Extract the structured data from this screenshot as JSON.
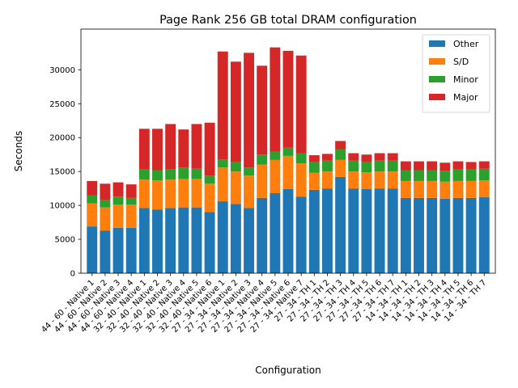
{
  "chart_data": {
    "type": "bar",
    "stacked": true,
    "title": "Page Rank 256 GB total DRAM configuration",
    "xlabel": "Configuration",
    "ylabel": "Seconds",
    "ylim": [
      0,
      36000
    ],
    "yticks": [
      0,
      5000,
      10000,
      15000,
      20000,
      25000,
      30000
    ],
    "grid": false,
    "legend_position": "top-right",
    "categories": [
      "44 - 60 - Native 1",
      "44 - 60 - Native 2",
      "44 - 60 - Native 3",
      "44 - 60 - Native 4",
      "32 - 40 - Native 1",
      "32 - 40 - Native 2",
      "32 - 40 - Native 3",
      "32 - 40 - Native 4",
      "32 - 40 - Native 5",
      "32 - 40 - Native 6",
      "27 - 34 - Native 1",
      "27 - 34 - Native 2",
      "27 - 34 - Native 3",
      "27 - 34 - Native 4",
      "27 - 34 - Native 5",
      "27 - 34 - Native 6",
      "27 - 34 - Native 7",
      "27 - 34 - TH 1",
      "27 - 34 - TH 2",
      "27 - 34 - TH 3",
      "27 - 34 - TH 4",
      "27 - 34 - TH 5",
      "27 - 34 - TH 6",
      "27 - 34 - TH 7",
      "14 - 34 - TH 1",
      "14 - 34 - TH 2",
      "14 - 34 - TH 3",
      "14 - 34 - TH 4",
      "14 - 34 - TH 5",
      "14 - 34 - TH 6",
      "14 - 34 - TH 7"
    ],
    "series": [
      {
        "name": "Other",
        "color": "#1f77b4",
        "values": [
          6900,
          6300,
          6700,
          6700,
          9600,
          9400,
          9600,
          9700,
          9700,
          9000,
          10600,
          10200,
          9600,
          11100,
          11800,
          12400,
          11300,
          12300,
          12500,
          14200,
          12500,
          12400,
          12500,
          12500,
          11100,
          11100,
          11100,
          11000,
          11100,
          11100,
          11200
        ]
      },
      {
        "name": "S/D",
        "color": "#ff7f0e",
        "values": [
          3400,
          3400,
          3400,
          3400,
          4200,
          4300,
          4200,
          4200,
          4200,
          4200,
          5000,
          4800,
          4800,
          4900,
          4900,
          4900,
          4900,
          2500,
          2500,
          2500,
          2500,
          2500,
          2500,
          2500,
          2500,
          2500,
          2500,
          2500,
          2500,
          2500,
          2500
        ]
      },
      {
        "name": "Minor",
        "color": "#2ca02c",
        "values": [
          1200,
          1100,
          1200,
          1000,
          1500,
          1500,
          1500,
          1700,
          1500,
          1200,
          1200,
          1400,
          1200,
          1500,
          1200,
          1200,
          1500,
          1600,
          1600,
          1600,
          1600,
          1500,
          1600,
          1600,
          1600,
          1600,
          1600,
          1600,
          1700,
          1700,
          1700
        ]
      },
      {
        "name": "Major",
        "color": "#d62728",
        "values": [
          2100,
          2400,
          2100,
          2000,
          6000,
          6100,
          6700,
          5600,
          6600,
          7800,
          15900,
          14800,
          16900,
          13100,
          15400,
          14300,
          14400,
          1000,
          1000,
          1200,
          1100,
          1100,
          1100,
          1100,
          1300,
          1300,
          1300,
          1200,
          1200,
          1100,
          1100
        ]
      }
    ]
  }
}
